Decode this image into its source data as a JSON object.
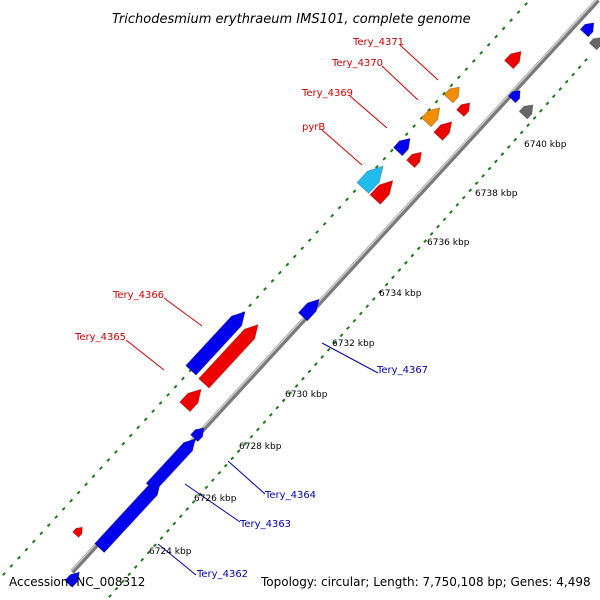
{
  "title": "Trichodesmium erythraeum IMS101, complete genome",
  "footer": {
    "accession": "Accession: NC_008312",
    "topology": "Topology: circular; Length: 7,750,108 bp; Genes: 4,498"
  },
  "colors": {
    "backbone": "#7a7a7a",
    "tick": "#1a7a1a",
    "forward_gene": "#0000ee",
    "reverse_gene": "#ee0000",
    "orange_gene": "#f08c00",
    "cyan_gene": "#22bbee",
    "gray_gene": "#666666",
    "label_red": "#cc0000",
    "label_blue": "#0000aa"
  },
  "scale_labels": [
    {
      "text": "6724 kbp",
      "kbp": 6724
    },
    {
      "text": "6726 kbp",
      "kbp": 6726
    },
    {
      "text": "6728 kbp",
      "kbp": 6728
    },
    {
      "text": "6730 kbp",
      "kbp": 6730
    },
    {
      "text": "6732 kbp",
      "kbp": 6732
    },
    {
      "text": "6734 kbp",
      "kbp": 6734
    },
    {
      "text": "6736 kbp",
      "kbp": 6736
    },
    {
      "text": "6738 kbp",
      "kbp": 6738
    },
    {
      "text": "6740 kbp",
      "kbp": 6740
    }
  ],
  "gene_labels": [
    {
      "text": "Tery_4371",
      "strand": "reverse"
    },
    {
      "text": "Tery_4370",
      "strand": "reverse"
    },
    {
      "text": "Tery_4369",
      "strand": "reverse"
    },
    {
      "text": "pyrB",
      "strand": "reverse"
    },
    {
      "text": "Tery_4366",
      "strand": "reverse"
    },
    {
      "text": "Tery_4365",
      "strand": "reverse"
    },
    {
      "text": "Tery_4367",
      "strand": "forward"
    },
    {
      "text": "Tery_4364",
      "strand": "forward"
    },
    {
      "text": "Tery_4363",
      "strand": "forward"
    },
    {
      "text": "Tery_4362",
      "strand": "forward"
    }
  ]
}
